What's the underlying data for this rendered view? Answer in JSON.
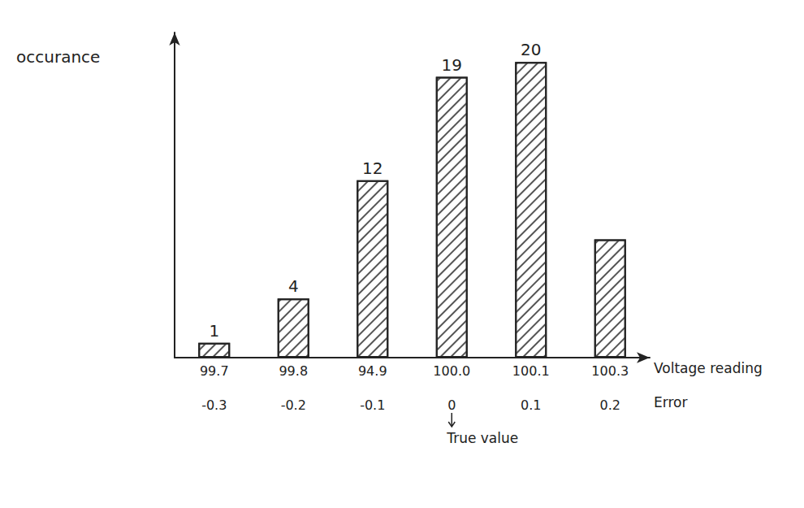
{
  "chart_data": {
    "type": "bar",
    "y_label": "occurance",
    "x_label": "Voltage reading",
    "categories": [
      "99.7",
      "99.8",
      "94.9",
      "100.0",
      "100.1",
      "100.3"
    ],
    "values": [
      1,
      4,
      12,
      19,
      20,
      8
    ],
    "value_labels": [
      "1",
      "4",
      "12",
      "19",
      "20",
      null
    ],
    "data_labels": true,
    "color": "#ffffff",
    "errors": [
      -0.3,
      -0.2,
      -0.1,
      0,
      0.1,
      0.2
    ],
    "error_label": "Error",
    "annotation": "True value",
    "annotation_at": 0,
    "ylim": [
      0,
      22
    ],
    "tick_labels": "x",
    "grid": false
  }
}
